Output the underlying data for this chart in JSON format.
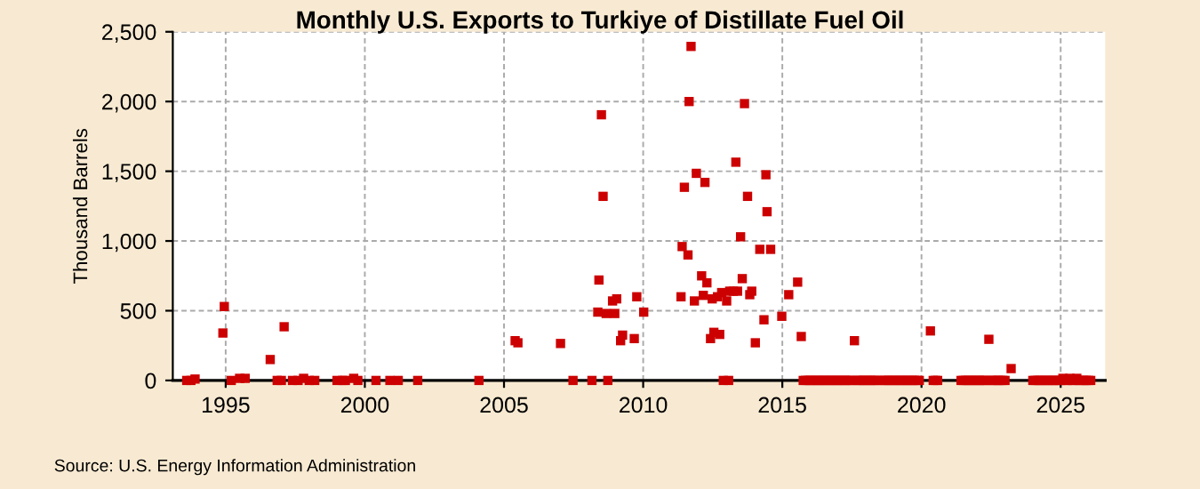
{
  "chart_data": {
    "type": "scatter",
    "title": "Monthly U.S. Exports to Turkiye of Distillate Fuel Oil",
    "ylabel": "Thousand Barrels",
    "annotations": [
      "Source: U.S. Energy Information Administration"
    ],
    "series": [
      {
        "color": "#cc0000",
        "x": [
          1993.6,
          1993.75,
          1993.9,
          1994.9,
          1994.95,
          1995.2,
          1995.5,
          1995.7,
          1996.6,
          1996.85,
          1997.0,
          1997.1,
          1997.4,
          1997.6,
          1997.8,
          1998.0,
          1998.2,
          1999.0,
          1999.2,
          1999.3,
          1999.6,
          1999.75,
          2000.4,
          2000.9,
          2001.2,
          2001.9,
          2004.1,
          2005.4,
          2005.5,
          2007.03,
          2007.48,
          2008.16,
          2008.37,
          2008.41,
          2008.5,
          2008.56,
          2008.67,
          2008.73,
          2008.9,
          2008.98,
          2009.05,
          2009.19,
          2009.26,
          2009.68,
          2009.77,
          2010.02,
          2011.36,
          2011.4,
          2011.48,
          2011.61,
          2011.65,
          2011.72,
          2011.84,
          2011.91,
          2012.1,
          2012.16,
          2012.22,
          2012.29,
          2012.42,
          2012.48,
          2012.54,
          2012.67,
          2012.75,
          2012.82,
          2012.88,
          2013.0,
          2013.07,
          2013.11,
          2013.24,
          2013.33,
          2013.39,
          2013.5,
          2013.56,
          2013.64,
          2013.75,
          2013.83,
          2013.9,
          2014.03,
          2014.19,
          2014.34,
          2014.41,
          2014.45,
          2014.58,
          2014.98,
          2015.23,
          2015.55,
          2015.68,
          2015.75,
          2015.83,
          2015.92,
          2016.0,
          2016.08,
          2016.17,
          2016.25,
          2016.33,
          2016.42,
          2016.5,
          2016.58,
          2016.67,
          2016.75,
          2016.83,
          2016.92,
          2017.0,
          2017.08,
          2017.17,
          2017.25,
          2017.33,
          2017.42,
          2017.5,
          2017.59,
          2017.67,
          2017.75,
          2017.83,
          2017.92,
          2018.0,
          2018.08,
          2018.17,
          2018.25,
          2018.33,
          2018.42,
          2018.58,
          2018.67,
          2018.75,
          2018.83,
          2018.92,
          2019.0,
          2019.08,
          2019.17,
          2019.25,
          2019.33,
          2019.42,
          2019.5,
          2019.58,
          2019.67,
          2019.75,
          2019.83,
          2019.92,
          2020.32,
          2020.42,
          2020.5,
          2020.58,
          2021.42,
          2021.5,
          2021.58,
          2021.67,
          2021.75,
          2021.83,
          2021.92,
          2022.0,
          2022.08,
          2022.17,
          2022.25,
          2022.33,
          2022.42,
          2022.5,
          2022.58,
          2022.67,
          2022.75,
          2022.83,
          2022.92,
          2023.0,
          2023.22,
          2024.0,
          2024.08,
          2024.17,
          2024.25,
          2024.33,
          2024.42,
          2024.5,
          2024.58,
          2024.67,
          2024.75,
          2024.83,
          2024.92,
          2025.0,
          2025.08,
          2025.17,
          2025.25,
          2025.33,
          2025.42,
          2025.5,
          2025.58,
          2025.67,
          2025.75,
          2025.83,
          2025.92,
          2026.0,
          2026.08
        ],
        "values": [
          0,
          0,
          10,
          340,
          530,
          0,
          15,
          15,
          150,
          0,
          0,
          385,
          0,
          0,
          15,
          0,
          0,
          0,
          0,
          0,
          15,
          0,
          0,
          0,
          0,
          0,
          0,
          285,
          270,
          265,
          0,
          0,
          490,
          720,
          1905,
          1320,
          480,
          0,
          570,
          480,
          585,
          285,
          325,
          300,
          600,
          490,
          600,
          960,
          1385,
          900,
          2000,
          2395,
          570,
          1485,
          750,
          610,
          1420,
          700,
          300,
          585,
          345,
          600,
          330,
          630,
          0,
          570,
          0,
          640,
          640,
          1565,
          640,
          1030,
          730,
          1985,
          1320,
          615,
          640,
          270,
          940,
          435,
          1475,
          1210,
          940,
          460,
          615,
          705,
          315,
          0,
          0,
          0,
          0,
          0,
          0,
          0,
          0,
          0,
          0,
          0,
          0,
          0,
          0,
          0,
          0,
          0,
          0,
          0,
          0,
          0,
          0,
          285,
          0,
          0,
          0,
          0,
          0,
          0,
          0,
          0,
          0,
          0,
          0,
          0,
          0,
          0,
          0,
          0,
          0,
          0,
          0,
          0,
          0,
          0,
          0,
          0,
          0,
          0,
          0,
          355,
          0,
          0,
          0,
          0,
          0,
          0,
          0,
          0,
          0,
          0,
          0,
          0,
          0,
          0,
          0,
          295,
          0,
          0,
          0,
          0,
          0,
          0,
          0,
          85,
          0,
          0,
          0,
          0,
          0,
          0,
          0,
          0,
          0,
          0,
          0,
          0,
          0,
          15,
          0,
          0,
          15,
          0,
          0,
          15,
          0,
          0,
          0,
          0,
          0,
          0
        ]
      }
    ],
    "xlim": [
      1993.1,
      2026.6
    ],
    "ylim": [
      0,
      2500
    ],
    "xticks": [
      1995,
      2000,
      2005,
      2010,
      2015,
      2020,
      2025
    ],
    "yticks": [
      0,
      {
        "value": 500,
        "label": "500"
      },
      {
        "value": 1000,
        "label": "1,000"
      },
      {
        "value": 1500,
        "label": "1,500"
      },
      {
        "value": 2000,
        "label": "2,000"
      },
      {
        "value": 2500,
        "label": "2,500"
      }
    ],
    "grid": true,
    "marker": "square"
  }
}
